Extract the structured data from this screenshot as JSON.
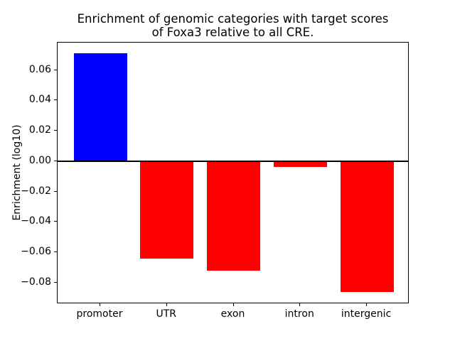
{
  "chart_data": {
    "type": "bar",
    "title": "Enrichment of genomic categories with target scores\nof Foxa3 relative to all CRE.",
    "xlabel": "",
    "ylabel": "Enrichment (log10)",
    "categories": [
      "promoter",
      "UTR",
      "exon",
      "intron",
      "intergenic"
    ],
    "values": [
      0.071,
      -0.064,
      -0.072,
      -0.004,
      -0.086
    ],
    "bar_colors": [
      "#0000ff",
      "#ff0000",
      "#ff0000",
      "#ff0000",
      "#ff0000"
    ],
    "positive_color": "#0000ff",
    "negative_color": "#ff0000",
    "yticks": [
      0.06,
      0.04,
      0.02,
      0.0,
      -0.02,
      -0.04,
      -0.06,
      -0.08
    ],
    "ytick_labels": [
      "0.06",
      "0.04",
      "0.02",
      "0.00",
      "−0.02",
      "−0.04",
      "−0.06",
      "−0.08"
    ],
    "ylim": [
      -0.094,
      0.078
    ],
    "xlim": [
      -0.64,
      4.64
    ],
    "bar_width_fraction": 0.8,
    "grid": false,
    "legend_position": "none",
    "zero_line": true,
    "spine_color": "#000000",
    "background_color": "#ffffff"
  }
}
